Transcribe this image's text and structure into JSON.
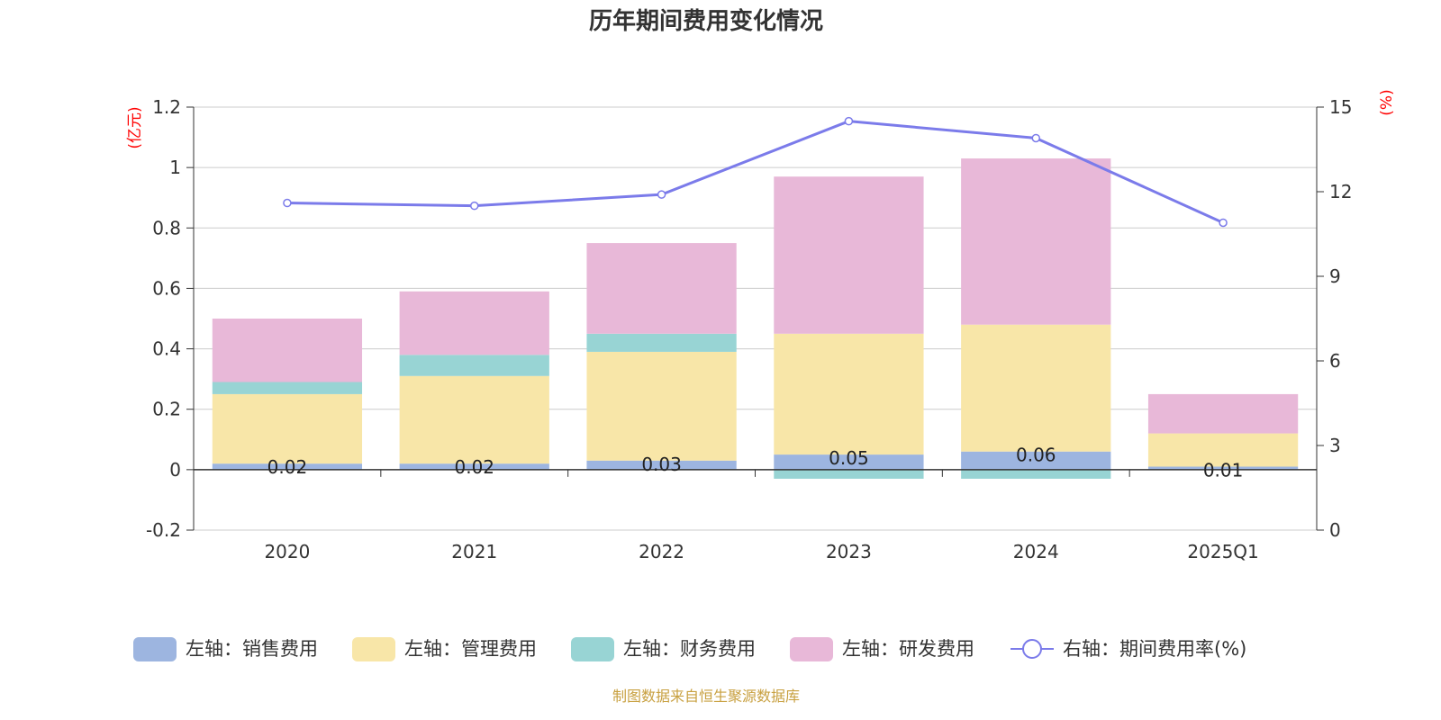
{
  "chart_data": {
    "type": "bar",
    "title": "历年期间费用变化情况",
    "categories": [
      "2020",
      "2021",
      "2022",
      "2023",
      "2024",
      "2025Q1"
    ],
    "left_axis": {
      "unit": "(亿元)",
      "ylim": [
        -0.2,
        1.2
      ],
      "ticks": [
        "-0.2",
        "0",
        "0.2",
        "0.4",
        "0.6",
        "0.8",
        "1",
        "1.2"
      ]
    },
    "right_axis": {
      "unit": "(%)",
      "ylim": [
        0,
        15
      ],
      "ticks": [
        "0",
        "3",
        "6",
        "9",
        "12",
        "15"
      ]
    },
    "series": [
      {
        "name": "左轴：销售费用",
        "axis": "left",
        "stack": "cost",
        "color": "#9db5e0",
        "values": [
          0.02,
          0.02,
          0.03,
          0.05,
          0.06,
          0.01
        ],
        "labels": [
          "0.02",
          "0.02",
          "0.03",
          "0.05",
          "0.06",
          "0.01"
        ]
      },
      {
        "name": "左轴：管理费用",
        "axis": "left",
        "stack": "cost",
        "color": "#f8e6a8",
        "values": [
          0.23,
          0.29,
          0.36,
          0.4,
          0.42,
          0.11
        ]
      },
      {
        "name": "左轴：财务费用",
        "axis": "left",
        "stack": "cost",
        "color": "#98d4d4",
        "values": [
          0.04,
          0.07,
          0.06,
          -0.03,
          -0.03,
          0.0
        ]
      },
      {
        "name": "左轴：研发费用",
        "axis": "left",
        "stack": "cost",
        "color": "#e8b8d8",
        "values": [
          0.21,
          0.21,
          0.3,
          0.52,
          0.55,
          0.13
        ]
      },
      {
        "name": "右轴：期间费用率(%)",
        "axis": "right",
        "type": "line",
        "color": "#7b7bea",
        "values": [
          11.6,
          11.5,
          11.9,
          14.5,
          13.9,
          10.9
        ]
      }
    ],
    "source": "制图数据来自恒生聚源数据库"
  }
}
